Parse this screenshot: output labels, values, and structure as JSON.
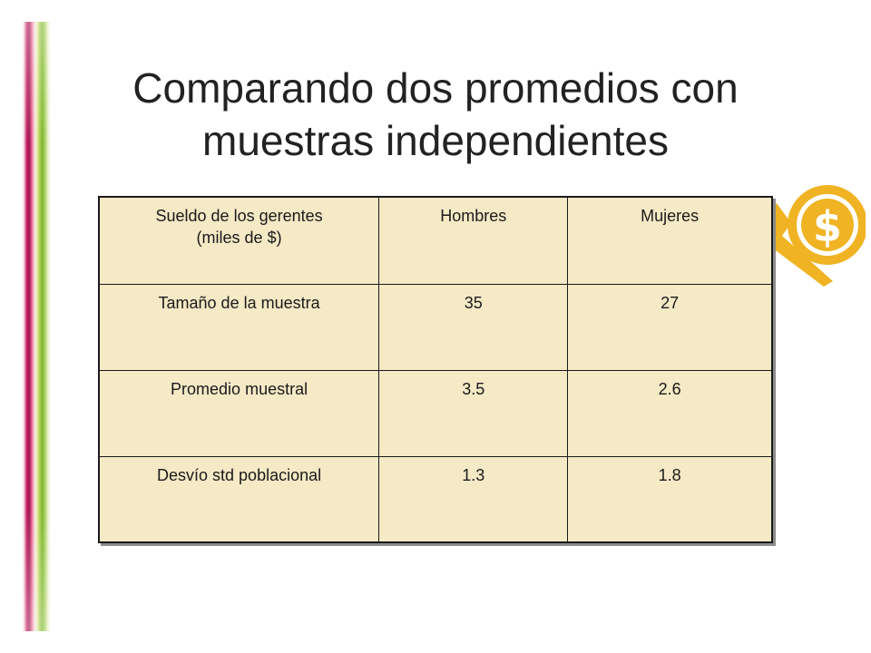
{
  "slide": {
    "title_line1": "Comparando dos promedios con",
    "title_line2": "muestras independientes",
    "accent_colors": {
      "magenta": "#c2185b",
      "green": "#7cb832",
      "gold": "#f0b323",
      "table_fill": "#f5e9c6"
    },
    "badge_icon": "dollar-coin-icon"
  },
  "table": {
    "header": {
      "label_line1": "Sueldo de los gerentes",
      "label_line2": "(miles de $)",
      "col1": "Hombres",
      "col2": "Mujeres"
    },
    "rows": [
      {
        "label": "Tamaño de la muestra",
        "hombres": "35",
        "mujeres": "27"
      },
      {
        "label": "Promedio muestral",
        "hombres": "3.5",
        "mujeres": "2.6"
      },
      {
        "label": "Desvío std poblacional",
        "hombres": "1.3",
        "mujeres": "1.8"
      }
    ]
  }
}
